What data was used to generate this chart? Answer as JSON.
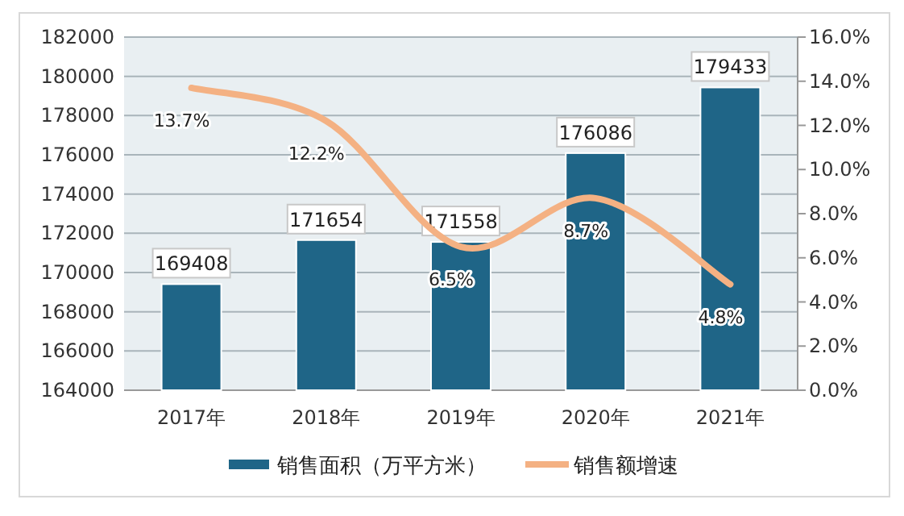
{
  "chart_data": {
    "type": "bar",
    "categories": [
      "2017年",
      "2018年",
      "2019年",
      "2020年",
      "2021年"
    ],
    "series": [
      {
        "name": "销售面积（万平方米）",
        "color": "#1f6587",
        "values": [
          169408,
          171654,
          171558,
          176086,
          179433
        ],
        "value_labels": [
          "169408",
          "171654",
          "171558",
          "176086",
          "179433"
        ]
      },
      {
        "name": "销售额增速",
        "type": "line",
        "axis": "y2",
        "color": "#f4b183",
        "values": [
          13.7,
          12.2,
          6.5,
          8.7,
          4.8
        ],
        "value_labels": [
          "13.7%",
          "12.2%",
          "6.5%",
          "8.7%",
          "4.8%"
        ]
      }
    ],
    "ylim": [
      164000,
      182000
    ],
    "yticks": [
      164000,
      166000,
      168000,
      170000,
      172000,
      174000,
      176000,
      178000,
      180000,
      182000
    ],
    "y2lim": [
      0,
      16
    ],
    "y2ticks": [
      {
        "value": 0,
        "label": "0.0%"
      },
      {
        "value": 2,
        "label": "2.0%"
      },
      {
        "value": 4,
        "label": "4.0%"
      },
      {
        "value": 6,
        "label": "6.0%"
      },
      {
        "value": 8,
        "label": "8.0%"
      },
      {
        "value": 10,
        "label": "10.0%"
      },
      {
        "value": 12,
        "label": "12.0%"
      },
      {
        "value": 14,
        "label": "14.0%"
      },
      {
        "value": 16,
        "label": "16.0%"
      }
    ],
    "grid": "y",
    "legend": "bottom"
  }
}
